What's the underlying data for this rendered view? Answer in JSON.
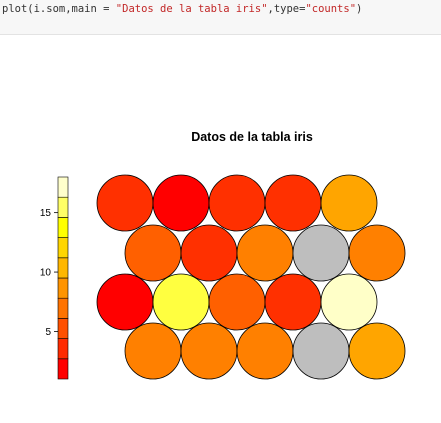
{
  "code_cell": {
    "prefix": "plot(i.som,main = ",
    "main_string": "\"Datos de la tabla iris\"",
    "middle": ",type=",
    "type_string": "\"counts\"",
    "suffix": ")"
  },
  "chart_data": {
    "type": "heatmap",
    "title": "Datos de la tabla iris",
    "colorbar": {
      "tick_labels": [
        "5",
        "10",
        "15"
      ],
      "tick_values": [
        5,
        10,
        15
      ],
      "range": [
        1,
        18
      ],
      "colors": [
        "#ff0000",
        "#ff2b00",
        "#ff5000",
        "#ff7300",
        "#ff9400",
        "#ffb700",
        "#ffd600",
        "#ffff00",
        "#ffff66",
        "#ffffcc"
      ]
    },
    "grid": {
      "rows": 4,
      "cols": 5,
      "topology": "hexagonal"
    },
    "cells": [
      [
        "#ff3000",
        "#ff0000",
        "#ff3000",
        "#ff3000",
        "#ffa500"
      ],
      [
        "#ff6000",
        "#ff3000",
        "#ff8000",
        "#bebebe",
        "#ff8000"
      ],
      [
        "#ff0000",
        "#ffff40",
        "#ff6000",
        "#ff3000",
        "#ffffc8"
      ],
      [
        "#ff8000",
        "#ff8000",
        "#ff8000",
        "#bebebe",
        "#ffa500"
      ]
    ]
  }
}
